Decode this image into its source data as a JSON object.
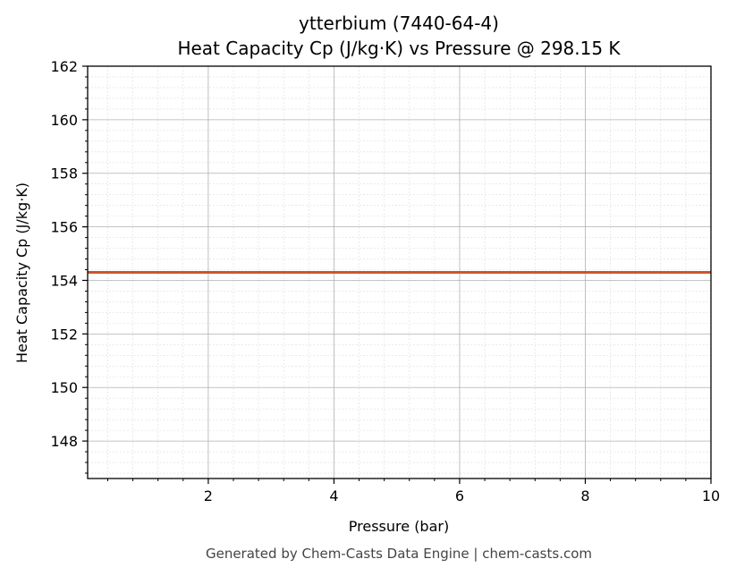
{
  "chart_data": {
    "type": "line",
    "title": "ytterbium (7440-64-4)",
    "subtitle": "Heat Capacity Cp (J/kg·K) vs Pressure @ 298.15 K",
    "xlabel": "Pressure (bar)",
    "ylabel": "Heat Capacity Cp (J/kg·K)",
    "xlim": [
      0.08,
      10
    ],
    "ylim": [
      146.6,
      162
    ],
    "x_ticks": [
      2,
      4,
      6,
      8,
      10
    ],
    "y_ticks": [
      148,
      150,
      152,
      154,
      156,
      158,
      160,
      162
    ],
    "grid": true,
    "legend": "none",
    "series": [
      {
        "color": "#cc5529",
        "x": [
          0.08,
          10
        ],
        "y": [
          154.3,
          154.3
        ]
      }
    ]
  },
  "footer": "Generated by Chem-Casts Data Engine | chem-casts.com"
}
